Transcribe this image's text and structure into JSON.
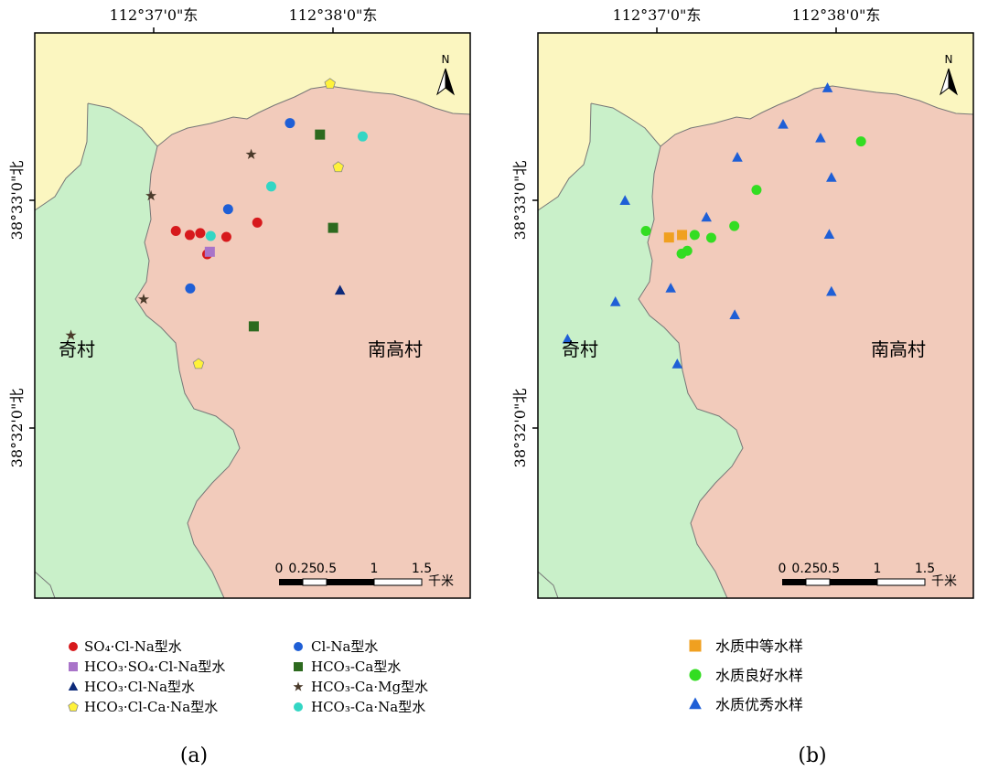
{
  "maps": [
    {
      "id": "a",
      "caption": "(a)",
      "lon_ticks": [
        "112°37'0\"东",
        "112°38'0\"东"
      ],
      "lat_ticks": [
        "38°33'0\"北",
        "38°32'0\"北"
      ],
      "north_label": "N",
      "villages": [
        "奇村",
        "南高村"
      ],
      "scale_labels": [
        "0",
        "0.25",
        "0.5",
        "1",
        "1.5",
        "千米"
      ],
      "legend": [
        {
          "key": "so4clna",
          "label": "SO₄·Cl-Na型水",
          "color": "#d7191c",
          "shape": "circle"
        },
        {
          "key": "clna",
          "label": "Cl-Na型水",
          "color": "#1f5fd6",
          "shape": "circle"
        },
        {
          "key": "hco3so4clna",
          "label": "HCO₃·SO₄·Cl-Na型水",
          "color": "#a974c9",
          "shape": "square"
        },
        {
          "key": "hco3ca",
          "label": "HCO₃-Ca型水",
          "color": "#2d6a1f",
          "shape": "square"
        },
        {
          "key": "hco3clna",
          "label": "HCO₃·Cl-Na型水",
          "color": "#0d2a7a",
          "shape": "triangle"
        },
        {
          "key": "hco3camg",
          "label": "HCO₃-Ca·Mg型水",
          "color": "#4a3a2a",
          "shape": "star"
        },
        {
          "key": "hco3clcana",
          "label": "HCO₃·Cl-Ca·Na型水",
          "color": "#fff23a",
          "shape": "pentagon"
        },
        {
          "key": "hco3cana",
          "label": "HCO₃-Ca·Na型水",
          "color": "#33d6c4",
          "shape": "circle"
        }
      ],
      "points": [
        {
          "type": "so4clna",
          "x": 0.324,
          "y": 0.637
        },
        {
          "type": "so4clna",
          "x": 0.356,
          "y": 0.65
        },
        {
          "type": "so4clna",
          "x": 0.38,
          "y": 0.644
        },
        {
          "type": "so4clna",
          "x": 0.44,
          "y": 0.656
        },
        {
          "type": "so4clna",
          "x": 0.396,
          "y": 0.712
        },
        {
          "type": "so4clna",
          "x": 0.511,
          "y": 0.61
        },
        {
          "type": "clna",
          "x": 0.444,
          "y": 0.567
        },
        {
          "type": "clna",
          "x": 0.586,
          "y": 0.29
        },
        {
          "type": "clna",
          "x": 0.357,
          "y": 0.822
        },
        {
          "type": "hco3so4clna",
          "x": 0.402,
          "y": 0.704
        },
        {
          "type": "hco3ca",
          "x": 0.655,
          "y": 0.327
        },
        {
          "type": "hco3ca",
          "x": 0.685,
          "y": 0.627
        },
        {
          "type": "hco3ca",
          "x": 0.503,
          "y": 0.944
        },
        {
          "type": "hco3clna",
          "x": 0.701,
          "y": 0.829
        },
        {
          "type": "hco3camg",
          "x": 0.497,
          "y": 0.391
        },
        {
          "type": "hco3camg",
          "x": 0.267,
          "y": 0.524
        },
        {
          "type": "hco3camg",
          "x": 0.25,
          "y": 0.857
        },
        {
          "type": "hco3camg",
          "x": 0.083,
          "y": 0.973
        },
        {
          "type": "hco3clcana",
          "x": 0.678,
          "y": 0.164
        },
        {
          "type": "hco3clcana",
          "x": 0.697,
          "y": 0.432
        },
        {
          "type": "hco3clcana",
          "x": 0.376,
          "y": 1.065
        },
        {
          "type": "hco3cana",
          "x": 0.753,
          "y": 0.333
        },
        {
          "type": "hco3cana",
          "x": 0.543,
          "y": 0.494
        },
        {
          "type": "hco3cana",
          "x": 0.404,
          "y": 0.653
        }
      ]
    },
    {
      "id": "b",
      "caption": "(b)",
      "lon_ticks": [
        "112°37'0\"东",
        "112°38'0\"东"
      ],
      "lat_ticks": [
        "38°33'0\"北",
        "38°32'0\"北"
      ],
      "north_label": "N",
      "villages": [
        "奇村",
        "南高村"
      ],
      "scale_labels": [
        "0",
        "0.25",
        "0.5",
        "1",
        "1.5",
        "千米"
      ],
      "legend": [
        {
          "key": "medium",
          "label": "水质中等水样",
          "color": "#f0a020",
          "shape": "square"
        },
        {
          "key": "good",
          "label": "水质良好水样",
          "color": "#33dd22",
          "shape": "circle"
        },
        {
          "key": "excellent",
          "label": "水质优秀水样",
          "color": "#1f5fd6",
          "shape": "triangle"
        }
      ],
      "points": [
        {
          "type": "medium",
          "x": 0.301,
          "y": 0.658
        },
        {
          "type": "medium",
          "x": 0.331,
          "y": 0.65
        },
        {
          "type": "good",
          "x": 0.248,
          "y": 0.637
        },
        {
          "type": "good",
          "x": 0.36,
          "y": 0.65
        },
        {
          "type": "good",
          "x": 0.398,
          "y": 0.659
        },
        {
          "type": "good",
          "x": 0.451,
          "y": 0.621
        },
        {
          "type": "good",
          "x": 0.502,
          "y": 0.505
        },
        {
          "type": "good",
          "x": 0.343,
          "y": 0.701
        },
        {
          "type": "good",
          "x": 0.33,
          "y": 0.71
        },
        {
          "type": "good",
          "x": 0.742,
          "y": 0.349
        },
        {
          "type": "excellent",
          "x": 0.665,
          "y": 0.178
        },
        {
          "type": "excellent",
          "x": 0.563,
          "y": 0.295
        },
        {
          "type": "excellent",
          "x": 0.649,
          "y": 0.339
        },
        {
          "type": "excellent",
          "x": 0.458,
          "y": 0.401
        },
        {
          "type": "excellent",
          "x": 0.674,
          "y": 0.466
        },
        {
          "type": "excellent",
          "x": 0.2,
          "y": 0.54
        },
        {
          "type": "excellent",
          "x": 0.387,
          "y": 0.594
        },
        {
          "type": "excellent",
          "x": 0.669,
          "y": 0.649
        },
        {
          "type": "excellent",
          "x": 0.305,
          "y": 0.822
        },
        {
          "type": "excellent",
          "x": 0.178,
          "y": 0.866
        },
        {
          "type": "excellent",
          "x": 0.674,
          "y": 0.833
        },
        {
          "type": "excellent",
          "x": 0.452,
          "y": 0.908
        },
        {
          "type": "excellent",
          "x": 0.068,
          "y": 0.986
        },
        {
          "type": "excellent",
          "x": 0.32,
          "y": 1.066
        }
      ]
    }
  ]
}
